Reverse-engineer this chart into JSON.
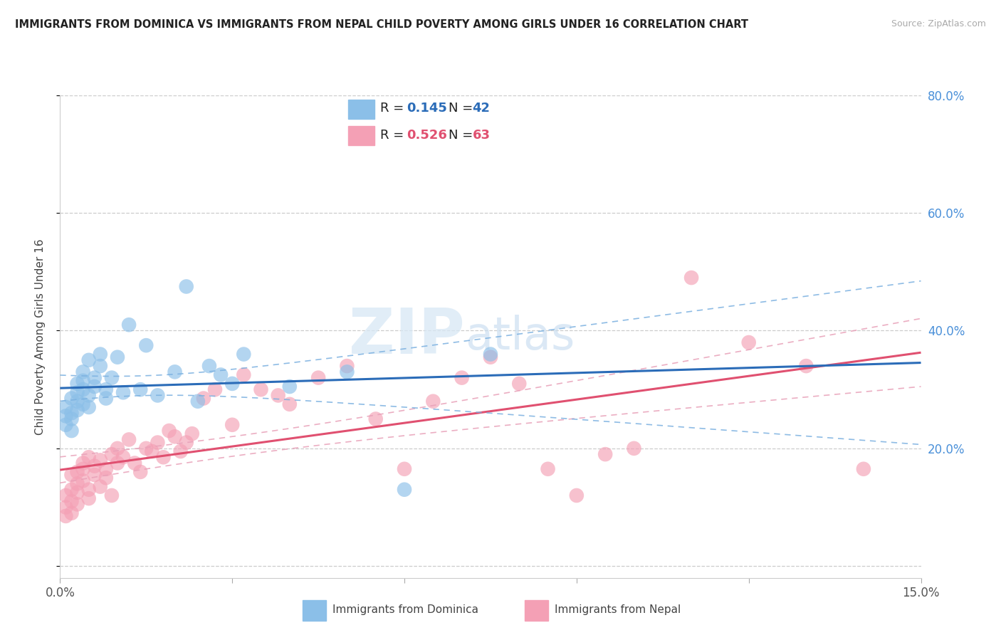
{
  "title": "IMMIGRANTS FROM DOMINICA VS IMMIGRANTS FROM NEPAL CHILD POVERTY AMONG GIRLS UNDER 16 CORRELATION CHART",
  "source": "Source: ZipAtlas.com",
  "ylabel": "Child Poverty Among Girls Under 16",
  "xlim": [
    0.0,
    0.15
  ],
  "ylim": [
    -0.02,
    0.8
  ],
  "yticks": [
    0.0,
    0.2,
    0.4,
    0.6,
    0.8
  ],
  "yticklabels": [
    "",
    "20.0%",
    "40.0%",
    "60.0%",
    "80.0%"
  ],
  "dominica_R": 0.145,
  "dominica_N": 42,
  "nepal_R": 0.526,
  "nepal_N": 63,
  "dominica_color": "#8bbfe8",
  "nepal_color": "#f4a0b5",
  "dominica_line_color": "#2b6cb8",
  "nepal_line_color": "#e05070",
  "ci_line_color_dom": "#7ab0e0",
  "ci_line_color_nep": "#e8a0b8",
  "watermark_text": "ZIPatlas",
  "legend_label_dominica": "Immigrants from Dominica",
  "legend_label_nepal": "Immigrants from Nepal",
  "dominica_x": [
    0.001,
    0.001,
    0.001,
    0.002,
    0.002,
    0.002,
    0.002,
    0.003,
    0.003,
    0.003,
    0.003,
    0.004,
    0.004,
    0.004,
    0.004,
    0.005,
    0.005,
    0.005,
    0.006,
    0.006,
    0.007,
    0.007,
    0.008,
    0.008,
    0.009,
    0.01,
    0.011,
    0.012,
    0.014,
    0.015,
    0.017,
    0.02,
    0.022,
    0.024,
    0.026,
    0.028,
    0.03,
    0.032,
    0.04,
    0.05,
    0.06,
    0.075
  ],
  "dominica_y": [
    0.255,
    0.27,
    0.24,
    0.285,
    0.26,
    0.25,
    0.23,
    0.31,
    0.295,
    0.28,
    0.265,
    0.33,
    0.315,
    0.3,
    0.275,
    0.35,
    0.27,
    0.29,
    0.305,
    0.32,
    0.34,
    0.36,
    0.285,
    0.3,
    0.32,
    0.355,
    0.295,
    0.41,
    0.3,
    0.375,
    0.29,
    0.33,
    0.475,
    0.28,
    0.34,
    0.325,
    0.31,
    0.36,
    0.305,
    0.33,
    0.13,
    0.36
  ],
  "nepal_x": [
    0.001,
    0.001,
    0.001,
    0.002,
    0.002,
    0.002,
    0.002,
    0.003,
    0.003,
    0.003,
    0.003,
    0.004,
    0.004,
    0.004,
    0.005,
    0.005,
    0.005,
    0.006,
    0.006,
    0.007,
    0.007,
    0.008,
    0.008,
    0.009,
    0.009,
    0.01,
    0.01,
    0.011,
    0.012,
    0.013,
    0.014,
    0.015,
    0.016,
    0.017,
    0.018,
    0.019,
    0.02,
    0.021,
    0.022,
    0.023,
    0.025,
    0.027,
    0.03,
    0.032,
    0.035,
    0.038,
    0.04,
    0.045,
    0.05,
    0.055,
    0.06,
    0.065,
    0.07,
    0.075,
    0.08,
    0.085,
    0.09,
    0.095,
    0.1,
    0.11,
    0.12,
    0.13,
    0.14
  ],
  "nepal_y": [
    0.085,
    0.1,
    0.12,
    0.09,
    0.13,
    0.155,
    0.11,
    0.14,
    0.16,
    0.125,
    0.105,
    0.145,
    0.175,
    0.165,
    0.115,
    0.13,
    0.185,
    0.155,
    0.17,
    0.135,
    0.18,
    0.15,
    0.165,
    0.19,
    0.12,
    0.2,
    0.175,
    0.185,
    0.215,
    0.175,
    0.16,
    0.2,
    0.195,
    0.21,
    0.185,
    0.23,
    0.22,
    0.195,
    0.21,
    0.225,
    0.285,
    0.3,
    0.24,
    0.325,
    0.3,
    0.29,
    0.275,
    0.32,
    0.34,
    0.25,
    0.165,
    0.28,
    0.32,
    0.355,
    0.31,
    0.165,
    0.12,
    0.19,
    0.2,
    0.49,
    0.38,
    0.34,
    0.165
  ]
}
